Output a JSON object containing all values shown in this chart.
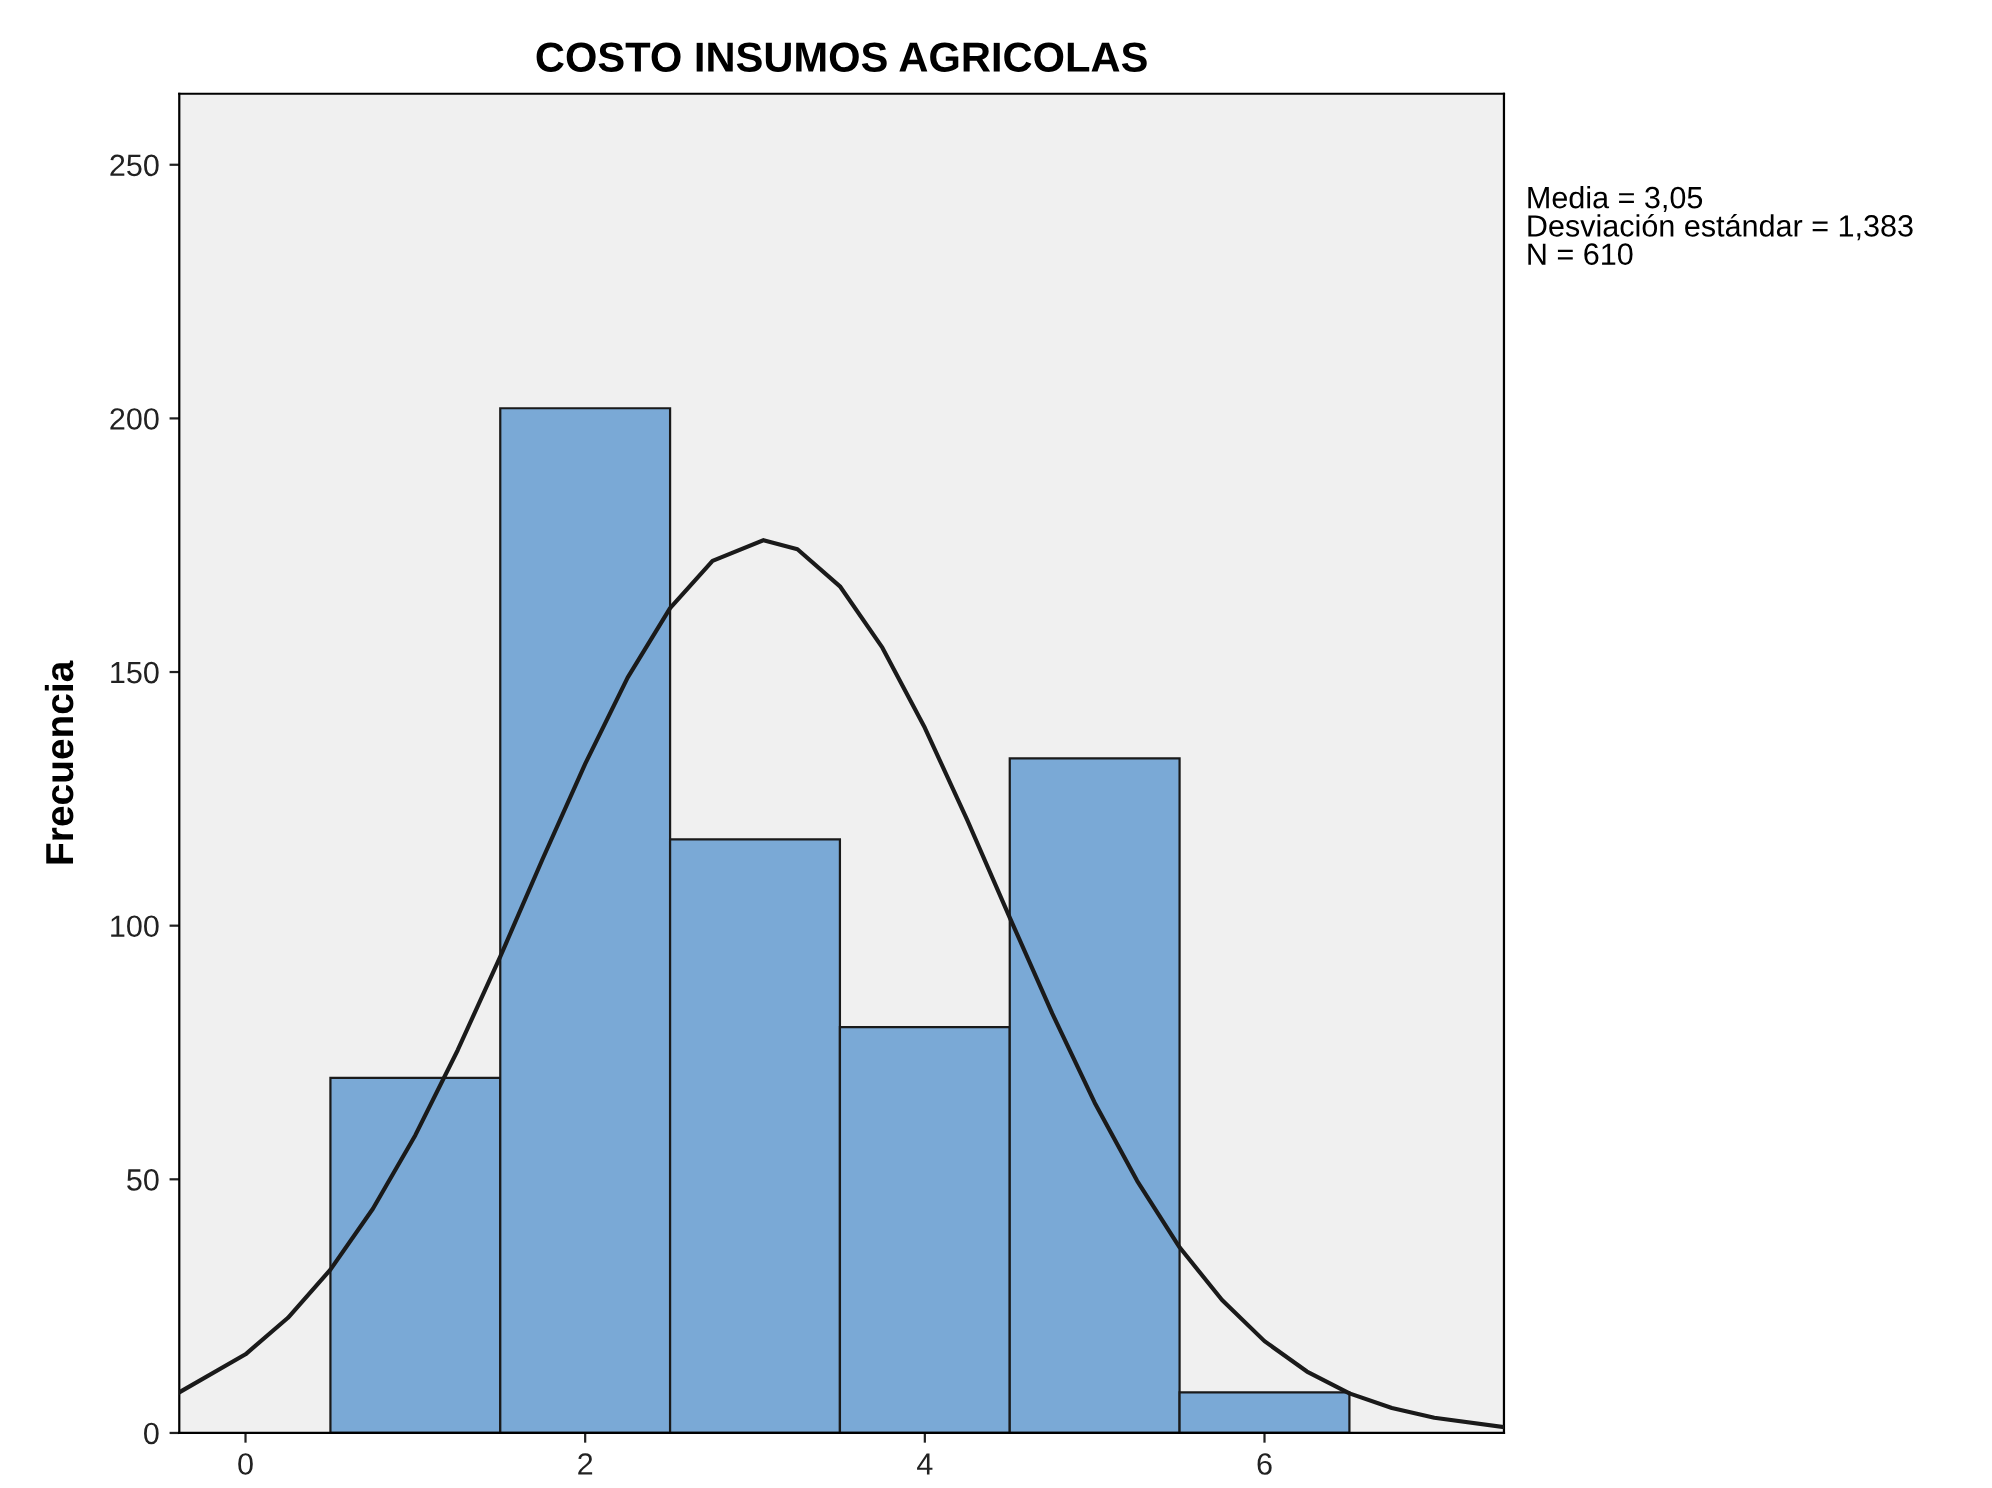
{
  "chart_data": {
    "type": "histogram",
    "title": "COSTO INSUMOS AGRICOLAS",
    "ylabel": "Frecuencia",
    "bins": [
      0.5,
      1.5,
      2.5,
      3.5,
      4.5,
      5.5,
      6.5
    ],
    "values": [
      70,
      202,
      117,
      80,
      133,
      8
    ],
    "color": "#7aa9d6",
    "series": [
      {
        "type": "line",
        "color": "#1a1a1a",
        "x": [
          -0.39,
          0,
          0.25,
          0.5,
          0.75,
          1,
          1.25,
          1.5,
          1.75,
          2,
          2.25,
          2.5,
          2.75,
          3.05,
          3.25,
          3.5,
          3.75,
          4,
          4.25,
          4.5,
          4.75,
          5,
          5.25,
          5.5,
          5.75,
          6,
          6.25,
          6.5,
          6.75,
          7,
          7.4
        ],
        "values": [
          8.0,
          15.5,
          22.7,
          32.2,
          44.2,
          58.7,
          75.5,
          93.9,
          113.2,
          131.9,
          148.9,
          162.6,
          171.9,
          176,
          174.2,
          166.9,
          154.8,
          139.0,
          120.8,
          101.6,
          82.7,
          65.1,
          49.7,
          36.6,
          26.2,
          18.1,
          12.1,
          7.8,
          4.9,
          3.0,
          1.2
        ]
      }
    ],
    "xlim": [
      -0.39,
      7.41
    ],
    "ylim": [
      0,
      264
    ],
    "xticks": [
      0,
      2,
      4,
      6
    ],
    "yticks": [
      0,
      50,
      100,
      150,
      200,
      250
    ],
    "annotations": [
      "Media = 3,05",
      "Desviación estándar = 1,383",
      "N = 610"
    ],
    "grid": false,
    "legend": false
  }
}
